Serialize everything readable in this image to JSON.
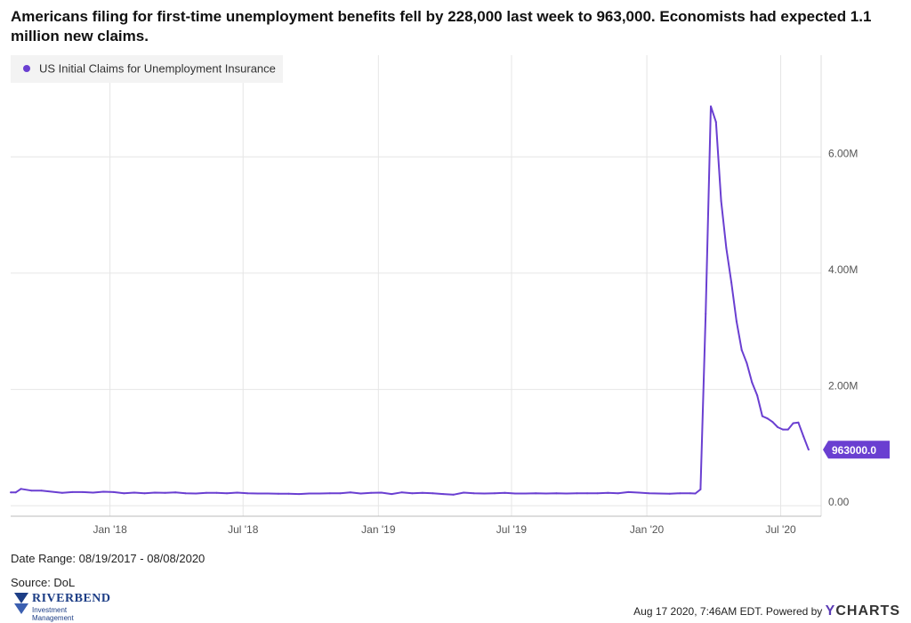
{
  "title": "Americans filing for first-time unemployment benefits fell by 228,000 last week to 963,000.  Economists had expected 1.1 million new claims.",
  "footer": {
    "date_range": "Date Range: 08/19/2017 - 08/08/2020",
    "source": "Source: DoL",
    "logo_word": "RIVERBEND",
    "logo_sub": "Investment Management",
    "timestamp": "Aug 17 2020, 7:46AM EDT. Powered by",
    "brand_y": "Y",
    "brand_rest": "CHARTS"
  },
  "colors": {
    "series": "#6a3fd1",
    "grid": "#e6e6e6",
    "label_bg": "#6a3fd1"
  },
  "chart_data": {
    "type": "line",
    "title": "",
    "xlabel": "",
    "ylabel": "",
    "legend_position": "top-left",
    "grid": true,
    "ylim": [
      -150000,
      7750000
    ],
    "xlim": [
      "2017-08-19",
      "2020-08-25"
    ],
    "y_ticks": [
      {
        "value": 0,
        "label": "0.00"
      },
      {
        "value": 2000000,
        "label": "2.00M"
      },
      {
        "value": 4000000,
        "label": "4.00M"
      },
      {
        "value": 6000000,
        "label": "6.00M"
      }
    ],
    "x_ticks": [
      {
        "date": "2018-01-01",
        "label": "Jan '18"
      },
      {
        "date": "2018-07-01",
        "label": "Jul '18"
      },
      {
        "date": "2019-01-01",
        "label": "Jan '19"
      },
      {
        "date": "2019-07-01",
        "label": "Jul '19"
      },
      {
        "date": "2020-01-01",
        "label": "Jan '20"
      },
      {
        "date": "2020-07-01",
        "label": "Jul '20"
      }
    ],
    "last_value_label": "963000.0",
    "series": [
      {
        "name": "US Initial Claims for Unemployment Insurance",
        "points": [
          [
            "2017-08-19",
            230000
          ],
          [
            "2017-08-26",
            230000
          ],
          [
            "2017-09-02",
            290000
          ],
          [
            "2017-09-16",
            260000
          ],
          [
            "2017-09-30",
            260000
          ],
          [
            "2017-10-14",
            240000
          ],
          [
            "2017-10-28",
            220000
          ],
          [
            "2017-11-11",
            235000
          ],
          [
            "2017-11-25",
            235000
          ],
          [
            "2017-12-09",
            225000
          ],
          [
            "2017-12-23",
            240000
          ],
          [
            "2018-01-06",
            235000
          ],
          [
            "2018-01-20",
            215000
          ],
          [
            "2018-02-03",
            225000
          ],
          [
            "2018-02-17",
            215000
          ],
          [
            "2018-03-03",
            225000
          ],
          [
            "2018-03-17",
            220000
          ],
          [
            "2018-03-31",
            230000
          ],
          [
            "2018-04-14",
            215000
          ],
          [
            "2018-04-28",
            210000
          ],
          [
            "2018-05-12",
            220000
          ],
          [
            "2018-05-26",
            220000
          ],
          [
            "2018-06-09",
            215000
          ],
          [
            "2018-06-23",
            225000
          ],
          [
            "2018-07-07",
            215000
          ],
          [
            "2018-07-21",
            210000
          ],
          [
            "2018-08-04",
            210000
          ],
          [
            "2018-08-18",
            205000
          ],
          [
            "2018-09-01",
            205000
          ],
          [
            "2018-09-15",
            200000
          ],
          [
            "2018-09-29",
            210000
          ],
          [
            "2018-10-13",
            210000
          ],
          [
            "2018-10-27",
            215000
          ],
          [
            "2018-11-10",
            215000
          ],
          [
            "2018-11-24",
            230000
          ],
          [
            "2018-12-08",
            210000
          ],
          [
            "2018-12-22",
            220000
          ],
          [
            "2019-01-05",
            225000
          ],
          [
            "2019-01-19",
            200000
          ],
          [
            "2019-02-02",
            230000
          ],
          [
            "2019-02-16",
            215000
          ],
          [
            "2019-03-02",
            220000
          ],
          [
            "2019-03-16",
            215000
          ],
          [
            "2019-03-30",
            200000
          ],
          [
            "2019-04-13",
            190000
          ],
          [
            "2019-04-27",
            225000
          ],
          [
            "2019-05-11",
            215000
          ],
          [
            "2019-05-25",
            210000
          ],
          [
            "2019-06-08",
            215000
          ],
          [
            "2019-06-22",
            220000
          ],
          [
            "2019-07-06",
            210000
          ],
          [
            "2019-07-20",
            210000
          ],
          [
            "2019-08-03",
            215000
          ],
          [
            "2019-08-17",
            210000
          ],
          [
            "2019-08-31",
            215000
          ],
          [
            "2019-09-14",
            210000
          ],
          [
            "2019-09-28",
            215000
          ],
          [
            "2019-10-12",
            215000
          ],
          [
            "2019-10-26",
            215000
          ],
          [
            "2019-11-09",
            220000
          ],
          [
            "2019-11-23",
            215000
          ],
          [
            "2019-12-07",
            235000
          ],
          [
            "2019-12-21",
            225000
          ],
          [
            "2020-01-04",
            215000
          ],
          [
            "2020-01-18",
            210000
          ],
          [
            "2020-02-01",
            205000
          ],
          [
            "2020-02-15",
            215000
          ],
          [
            "2020-02-29",
            215000
          ],
          [
            "2020-03-07",
            210000
          ],
          [
            "2020-03-14",
            280000
          ],
          [
            "2020-03-21",
            3300000
          ],
          [
            "2020-03-28",
            6870000
          ],
          [
            "2020-04-04",
            6600000
          ],
          [
            "2020-04-11",
            5240000
          ],
          [
            "2020-04-18",
            4430000
          ],
          [
            "2020-04-25",
            3840000
          ],
          [
            "2020-05-02",
            3170000
          ],
          [
            "2020-05-09",
            2680000
          ],
          [
            "2020-05-16",
            2450000
          ],
          [
            "2020-05-23",
            2120000
          ],
          [
            "2020-05-30",
            1900000
          ],
          [
            "2020-06-06",
            1540000
          ],
          [
            "2020-06-13",
            1500000
          ],
          [
            "2020-06-20",
            1440000
          ],
          [
            "2020-06-27",
            1350000
          ],
          [
            "2020-07-04",
            1310000
          ],
          [
            "2020-07-11",
            1310000
          ],
          [
            "2020-07-18",
            1420000
          ],
          [
            "2020-07-25",
            1430000
          ],
          [
            "2020-08-01",
            1190000
          ],
          [
            "2020-08-08",
            963000
          ]
        ]
      }
    ]
  }
}
